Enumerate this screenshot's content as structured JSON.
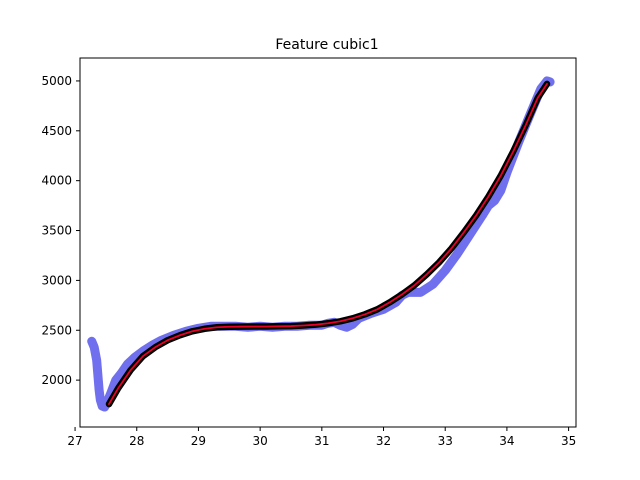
{
  "chart_data": {
    "type": "line",
    "title": "Feature cubic1",
    "xlabel": "",
    "ylabel": "",
    "xlim": [
      27.08,
      35.12
    ],
    "ylim": [
      1530,
      5230
    ],
    "grid": false,
    "legend": "none",
    "x_ticks": [
      27,
      28,
      29,
      30,
      31,
      32,
      33,
      34,
      35
    ],
    "x_tick_labels": [
      "27",
      "28",
      "29",
      "30",
      "31",
      "32",
      "33",
      "34",
      "35"
    ],
    "y_ticks": [
      2000,
      2500,
      3000,
      3500,
      4000,
      4500,
      5000
    ],
    "y_tick_labels": [
      "2000",
      "2500",
      "3000",
      "3500",
      "4000",
      "4500",
      "5000"
    ],
    "series": [
      {
        "role": "raw",
        "color": "#7070ee",
        "style": "thick-line",
        "x": [
          27.27,
          27.31,
          27.35,
          27.37,
          27.39,
          27.41,
          27.44,
          27.48,
          27.52,
          27.58,
          27.66,
          27.75,
          27.85,
          27.97,
          28.1,
          28.25,
          28.4,
          28.6,
          28.8,
          29.0,
          29.2,
          29.4,
          29.6,
          29.8,
          30.0,
          30.2,
          30.4,
          30.6,
          30.8,
          31.0,
          31.1,
          31.2,
          31.3,
          31.4,
          31.5,
          31.6,
          31.8,
          32.0,
          32.2,
          32.3,
          32.4,
          32.5,
          32.6,
          32.8,
          33.0,
          33.2,
          33.4,
          33.6,
          33.7,
          33.8,
          33.9,
          34.0,
          34.2,
          34.4,
          34.55,
          34.65,
          34.7
        ],
        "y": [
          2390,
          2330,
          2200,
          2050,
          1900,
          1800,
          1740,
          1730,
          1780,
          1870,
          2000,
          2070,
          2160,
          2230,
          2290,
          2350,
          2400,
          2450,
          2490,
          2520,
          2540,
          2540,
          2540,
          2530,
          2540,
          2530,
          2540,
          2540,
          2550,
          2550,
          2570,
          2580,
          2550,
          2530,
          2560,
          2620,
          2670,
          2710,
          2780,
          2850,
          2880,
          2880,
          2880,
          2960,
          3100,
          3270,
          3460,
          3650,
          3750,
          3800,
          3900,
          4080,
          4400,
          4700,
          4920,
          5000,
          4990
        ]
      },
      {
        "role": "samples",
        "color": "#000000",
        "style": "thick-line",
        "x": [
          27.55,
          27.7,
          27.9,
          28.1,
          28.3,
          28.5,
          28.7,
          28.9,
          29.1,
          29.3,
          29.5,
          29.7,
          29.9,
          30.1,
          30.3,
          30.5,
          30.7,
          30.9,
          31.1,
          31.3,
          31.5,
          31.7,
          31.9,
          32.1,
          32.3,
          32.5,
          32.7,
          32.9,
          33.1,
          33.3,
          33.5,
          33.7,
          33.9,
          34.1,
          34.3,
          34.5,
          34.65
        ],
        "y": [
          1760,
          1920,
          2100,
          2240,
          2330,
          2400,
          2450,
          2490,
          2515,
          2530,
          2535,
          2537,
          2538,
          2538,
          2540,
          2542,
          2548,
          2556,
          2570,
          2590,
          2620,
          2660,
          2710,
          2780,
          2860,
          2950,
          3060,
          3180,
          3320,
          3480,
          3650,
          3840,
          4050,
          4290,
          4550,
          4830,
          4970
        ]
      },
      {
        "role": "fit",
        "color": "#e8002a",
        "style": "thin-line",
        "x": [
          27.55,
          27.7,
          27.9,
          28.1,
          28.3,
          28.5,
          28.7,
          28.9,
          29.1,
          29.3,
          29.5,
          29.7,
          29.9,
          30.1,
          30.3,
          30.5,
          30.7,
          30.9,
          31.1,
          31.3,
          31.5,
          31.7,
          31.9,
          32.1,
          32.3,
          32.5,
          32.7,
          32.9,
          33.1,
          33.3,
          33.5,
          33.7,
          33.9,
          34.1,
          34.3,
          34.5,
          34.65
        ],
        "y": [
          1760,
          1920,
          2100,
          2240,
          2330,
          2400,
          2450,
          2490,
          2515,
          2530,
          2535,
          2537,
          2538,
          2538,
          2540,
          2542,
          2548,
          2556,
          2570,
          2590,
          2620,
          2660,
          2710,
          2780,
          2860,
          2950,
          3060,
          3180,
          3320,
          3480,
          3650,
          3840,
          4050,
          4290,
          4550,
          4830,
          4970
        ]
      }
    ]
  }
}
